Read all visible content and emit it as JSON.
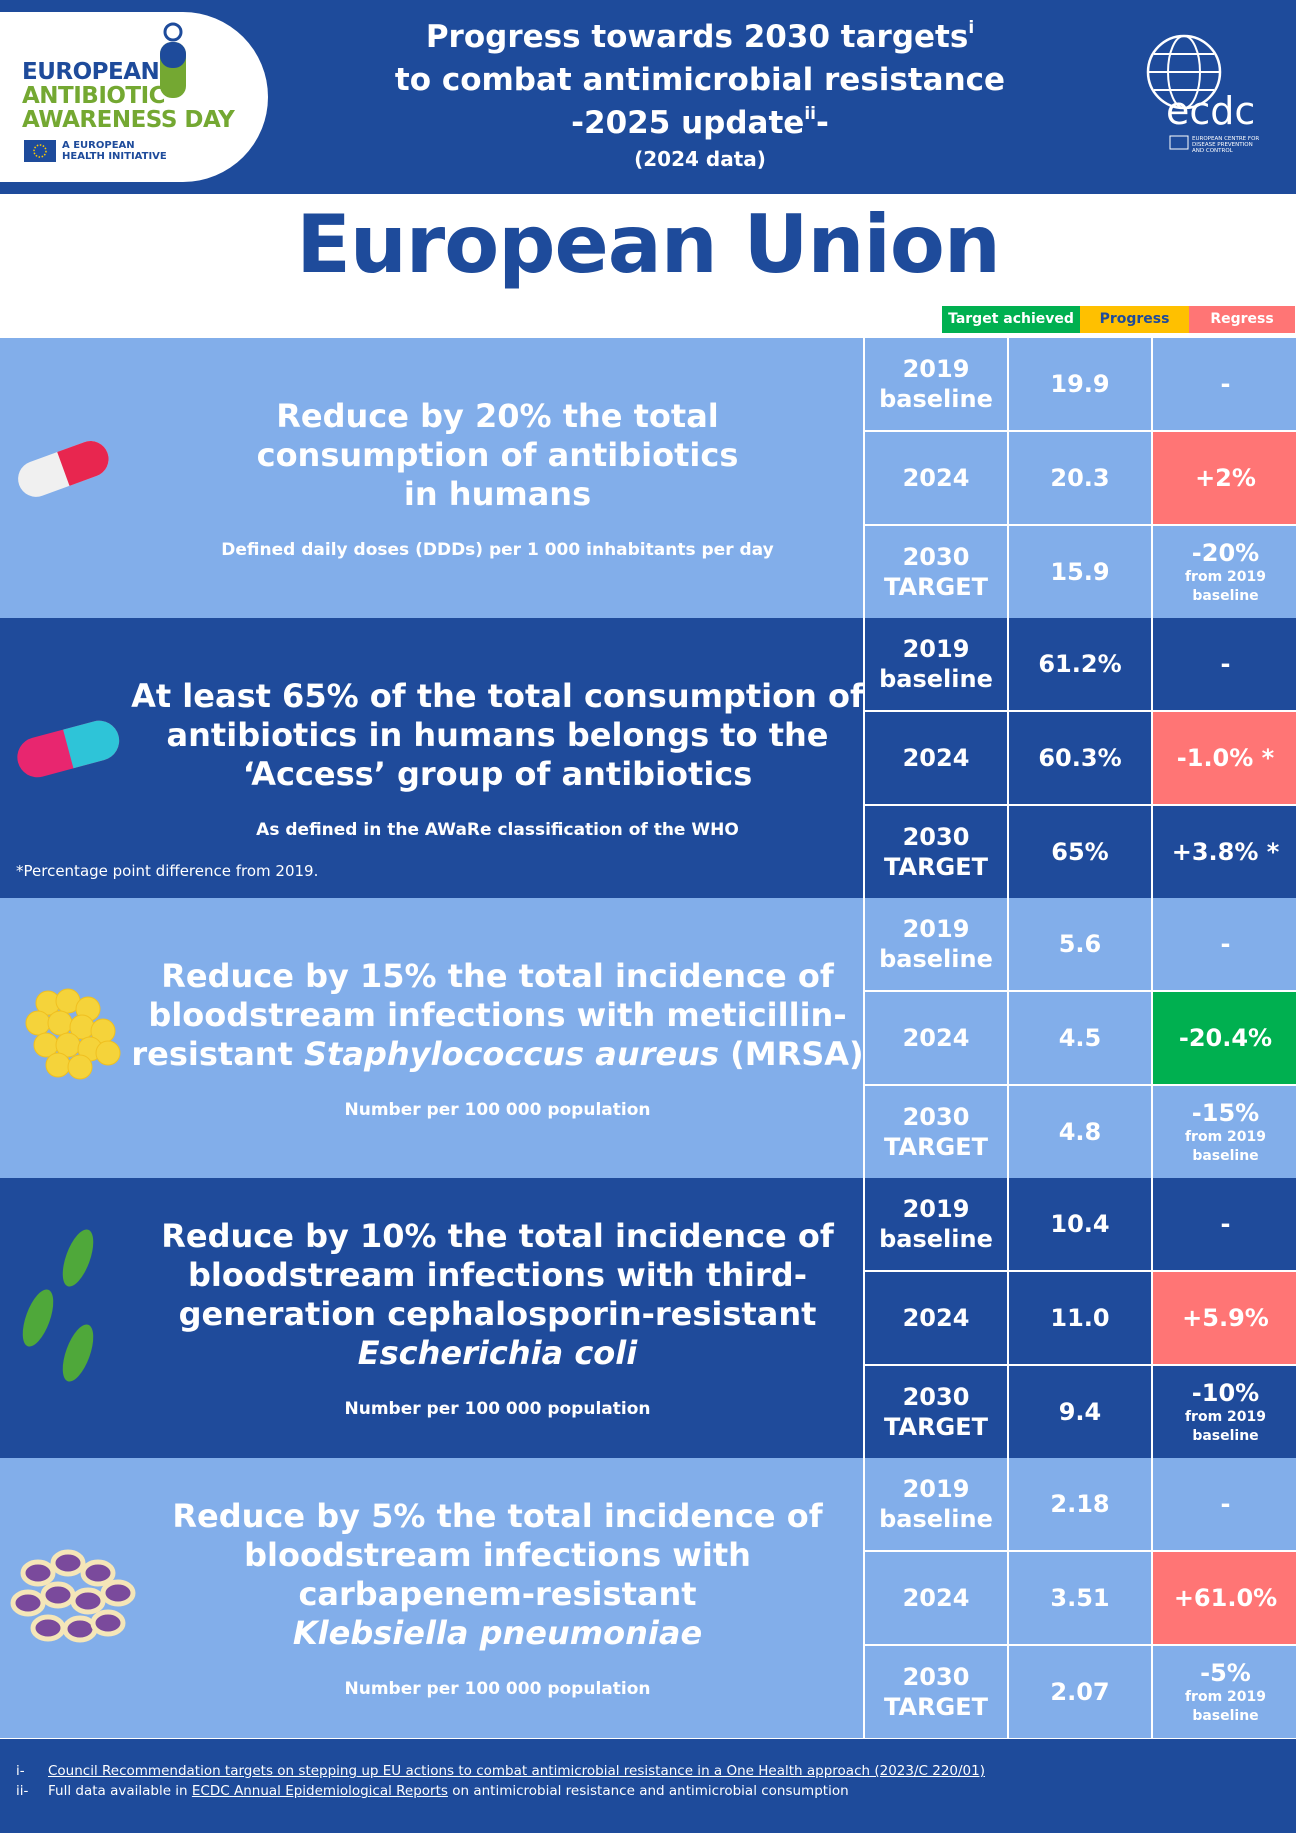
{
  "header": {
    "title_line1": "Progress towards 2030 targets",
    "title_sup1": "i",
    "title_line2": "to combat antimicrobial resistance",
    "title_line3": "-2025 update",
    "title_sup2": "ii",
    "title_line3_end": "-",
    "data_note": "(2024 data)",
    "logo_left": {
      "line1": "EUROPEAN",
      "line2": "ANTIBIOTIC",
      "line3": "AWARENESS DAY",
      "initiative1": "A EUROPEAN",
      "initiative2": "HEALTH INITIATIVE"
    },
    "logo_right": {
      "name": "ecdc",
      "sub1": "EUROPEAN CENTRE FOR",
      "sub2": "DISEASE PREVENTION",
      "sub3": "AND CONTROL"
    }
  },
  "region": "European Union",
  "legend": [
    {
      "label": "Target achieved",
      "color": "#00b050"
    },
    {
      "label": "Progress",
      "color": "#ffc000"
    },
    {
      "label": "Regress",
      "color": "#ff7575"
    }
  ],
  "targets": [
    {
      "title": [
        [
          "Reduce by 20% the total"
        ],
        [
          "consumption of antibiotics"
        ],
        [
          "in humans"
        ]
      ],
      "subtitle": "Defined daily doses (DDDs) per 1 000 inhabitants per day",
      "rows": [
        {
          "label": "2019 baseline",
          "value": "19.9",
          "change": "-"
        },
        {
          "label": "2024",
          "value": "20.3",
          "change": "+2%",
          "status": "Regress"
        },
        {
          "label": "2030 TARGET",
          "value": "15.9",
          "change": "-20%",
          "change_note": "from 2019 baseline"
        }
      ]
    },
    {
      "title": [
        [
          "At least 65% of the total consumption of"
        ],
        [
          "antibiotics in humans belongs to the"
        ],
        [
          "‘Access’ group of antibiotics"
        ]
      ],
      "subtitle": "As defined in the AWaRe classification of the WHO",
      "note": "*Percentage point difference from 2019.",
      "rows": [
        {
          "label": "2019 baseline",
          "value": "61.2%",
          "change": "-"
        },
        {
          "label": "2024",
          "value": "60.3%",
          "change": "-1.0% *",
          "status": "Regress"
        },
        {
          "label": "2030 TARGET",
          "value": "65%",
          "change": "+3.8% *"
        }
      ]
    },
    {
      "title": [
        [
          "Reduce by 15% the total incidence of"
        ],
        [
          "bloodstream infections with meticillin-"
        ],
        [
          "resistant ",
          {
            "text": "Staphylococcus aureus",
            "italic": true
          },
          " (MRSA)"
        ]
      ],
      "subtitle": "Number per 100 000 population",
      "rows": [
        {
          "label": "2019 baseline",
          "value": "5.6",
          "change": "-"
        },
        {
          "label": "2024",
          "value": "4.5",
          "change": "-20.4%",
          "status": "Target achieved"
        },
        {
          "label": "2030 TARGET",
          "value": "4.8",
          "change": "-15%",
          "change_note": "from 2019 baseline"
        }
      ]
    },
    {
      "title": [
        [
          "Reduce by 10% the total incidence of"
        ],
        [
          "bloodstream infections with third-"
        ],
        [
          "generation cephalosporin-resistant"
        ],
        [
          {
            "text": "Escherichia coli",
            "italic": true
          }
        ]
      ],
      "subtitle": "Number per 100 000 population",
      "rows": [
        {
          "label": "2019 baseline",
          "value": "10.4",
          "change": "-"
        },
        {
          "label": "2024",
          "value": "11.0",
          "change": "+5.9%",
          "status": "Regress"
        },
        {
          "label": "2030 TARGET",
          "value": "9.4",
          "change": "-10%",
          "change_note": "from 2019 baseline"
        }
      ]
    },
    {
      "title": [
        [
          "Reduce by 5% the total incidence of"
        ],
        [
          "bloodstream infections with"
        ],
        [
          "carbapenem-resistant"
        ],
        [
          {
            "text": "Klebsiella pneumoniae",
            "italic": true
          }
        ]
      ],
      "subtitle": "Number per 100 000 population",
      "rows": [
        {
          "label": "2019 baseline",
          "value": "2.18",
          "change": "-"
        },
        {
          "label": "2024",
          "value": "3.51",
          "change": "+61.0%",
          "status": "Regress"
        },
        {
          "label": "2030 TARGET",
          "value": "2.07",
          "change": "-5%",
          "change_note": "from 2019 baseline"
        }
      ]
    }
  ],
  "footer": [
    {
      "marker": "i-",
      "parts": [
        {
          "text": "Council Recommendation targets on stepping up EU actions to combat antimicrobial resistance in a One Health approach (2023/C 220/01)",
          "link": true
        }
      ]
    },
    {
      "marker": "ii-",
      "parts": [
        {
          "text": "Full data available in "
        },
        {
          "text": "ECDC Annual Epidemiological Reports",
          "link": true
        },
        {
          "text": " on antimicrobial resistance and antimicrobial consumption"
        }
      ]
    }
  ]
}
